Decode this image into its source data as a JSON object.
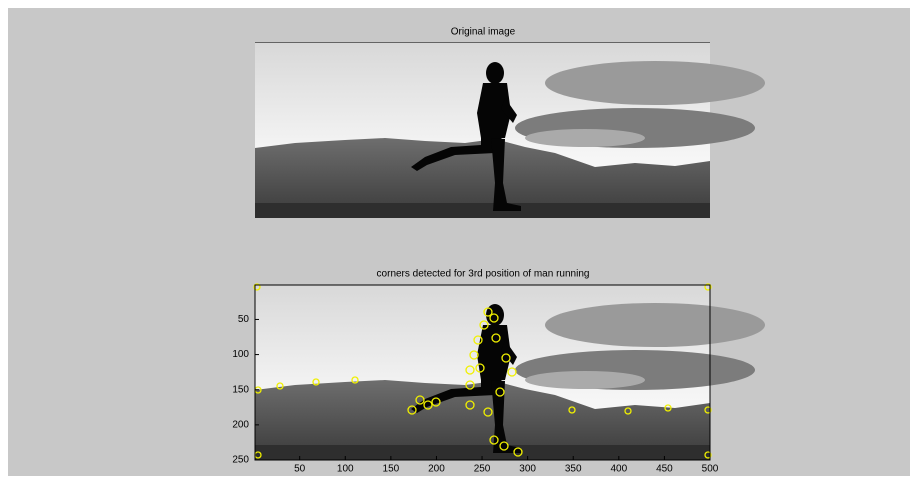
{
  "figure": {
    "top_axes": {
      "title": "Original image"
    },
    "bottom_axes": {
      "title": "corners detected for 3rd position of man running",
      "xlim": [
        1,
        500
      ],
      "ylim": [
        1,
        250
      ],
      "xticks": [
        50,
        100,
        150,
        200,
        250,
        300,
        350,
        400,
        450,
        500
      ],
      "yticks": [
        50,
        100,
        150,
        200,
        250
      ]
    }
  }
}
